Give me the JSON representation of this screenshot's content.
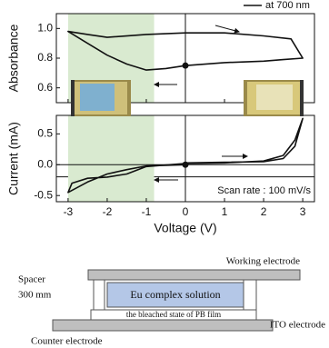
{
  "chart_data": [
    {
      "type": "line",
      "x": [
        0,
        -0.5,
        -1,
        -1.5,
        -2,
        -2.5,
        -3,
        -2.5,
        -2,
        -1,
        0,
        1,
        2,
        2.7,
        3,
        2.5,
        2,
        1,
        0
      ],
      "series": [
        {
          "name": "at 700 nm",
          "color": "#111111",
          "values": [
            0.75,
            0.73,
            0.72,
            0.76,
            0.82,
            0.9,
            0.98,
            0.96,
            0.94,
            0.96,
            0.97,
            0.97,
            0.95,
            0.93,
            0.8,
            0.79,
            0.78,
            0.77,
            0.75
          ]
        }
      ],
      "ylabel": "Absorbance",
      "xlim": [
        -3.3,
        3.3
      ],
      "ylim": [
        0.5,
        1.1
      ],
      "xticks": [
        -3,
        -2,
        -1,
        0,
        1,
        2,
        3
      ],
      "xtick_labels": false,
      "yticks": [
        0.6,
        0.8,
        {
          "value": 1,
          "label": "1.0"
        }
      ],
      "highlight_x": [
        -3,
        -0.8
      ],
      "highlight_color": "#d9ead0",
      "zero_lines": true,
      "start_marker": true
    },
    {
      "type": "line",
      "x": [
        0,
        -1,
        -1.5,
        -2,
        -2.5,
        -3,
        -2.9,
        -2.5,
        -2,
        -1.5,
        -1,
        0,
        1,
        2,
        2.5,
        2.8,
        3,
        2.8,
        2.5,
        2,
        1,
        0
      ],
      "series": [
        {
          "color": "#111111",
          "values": [
            0,
            -0.02,
            -0.08,
            -0.15,
            -0.28,
            -0.45,
            -0.3,
            -0.22,
            -0.2,
            -0.15,
            -0.03,
            0.02,
            0.03,
            0.06,
            0.15,
            0.4,
            0.75,
            0.3,
            0.1,
            0.05,
            0.04,
            0.03
          ]
        }
      ],
      "ylabel": "Current (mA)",
      "xlabel": "Voltage (V)",
      "annotation": "Scan rate : 100 mV/s",
      "xlim": [
        -3.3,
        3.3
      ],
      "ylim": [
        -0.6,
        0.8
      ],
      "xticks": [
        -3,
        -2,
        -1,
        0,
        1,
        2,
        3
      ],
      "yticks": [
        -0.5,
        {
          "value": 0,
          "label": "0.0"
        },
        0.5
      ],
      "highlight_x": [
        -3,
        -0.8
      ],
      "highlight_color": "#d9ead0",
      "zero_lines": true,
      "start_marker": true
    }
  ],
  "diagram": {
    "working_electrode": "Working electrode",
    "spacer": "Spacer",
    "spacer_size": "300 mm",
    "solution": "Eu complex solution",
    "film": "the bleached state of PB film",
    "ito": "ITO electrode",
    "counter": "Counter electrode"
  }
}
